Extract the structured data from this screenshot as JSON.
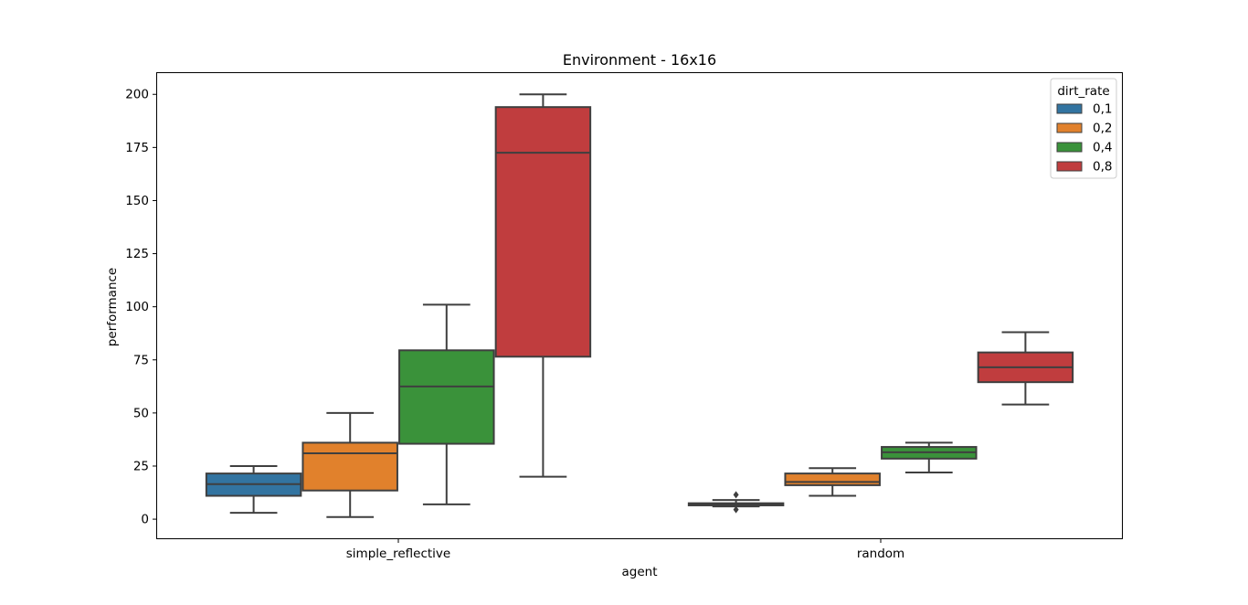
{
  "chart_data": {
    "type": "box",
    "title": "Environment - 16x16",
    "xlabel": "agent",
    "ylabel": "performance",
    "categories": [
      "simple_reflective",
      "random"
    ],
    "ylim": [
      -9,
      210
    ],
    "yticks": [
      0,
      25,
      50,
      75,
      100,
      125,
      150,
      175,
      200
    ],
    "legend": {
      "title": "dirt_rate",
      "position": "top-right"
    },
    "series": [
      {
        "name": "0,1",
        "color": "#3274a1",
        "boxes": [
          {
            "category": "simple_reflective",
            "whisker_low": 3,
            "q1": 11,
            "median": 16.5,
            "q3": 21.5,
            "whisker_high": 25,
            "outliers": []
          },
          {
            "category": "random",
            "whisker_low": 6,
            "q1": 6.5,
            "median": 7,
            "q3": 7.5,
            "whisker_high": 9,
            "outliers": [
              4.5,
              11.5
            ]
          }
        ]
      },
      {
        "name": "0,2",
        "color": "#e1812c",
        "boxes": [
          {
            "category": "simple_reflective",
            "whisker_low": 1,
            "q1": 13.5,
            "median": 31,
            "q3": 36,
            "whisker_high": 50,
            "outliers": []
          },
          {
            "category": "random",
            "whisker_low": 11,
            "q1": 16,
            "median": 17.5,
            "q3": 21.5,
            "whisker_high": 24,
            "outliers": []
          }
        ]
      },
      {
        "name": "0,4",
        "color": "#3a923a",
        "boxes": [
          {
            "category": "simple_reflective",
            "whisker_low": 7,
            "q1": 35.5,
            "median": 62.5,
            "q3": 79.5,
            "whisker_high": 101,
            "outliers": []
          },
          {
            "category": "random",
            "whisker_low": 22,
            "q1": 28.5,
            "median": 31.5,
            "q3": 34,
            "whisker_high": 36,
            "outliers": []
          }
        ]
      },
      {
        "name": "0,8",
        "color": "#c03d3e",
        "boxes": [
          {
            "category": "simple_reflective",
            "whisker_low": 20,
            "q1": 76.5,
            "median": 172.5,
            "q3": 194,
            "whisker_high": 200,
            "outliers": []
          },
          {
            "category": "random",
            "whisker_low": 54,
            "q1": 64.5,
            "median": 71.5,
            "q3": 78.5,
            "whisker_high": 88,
            "outliers": []
          }
        ]
      }
    ]
  }
}
